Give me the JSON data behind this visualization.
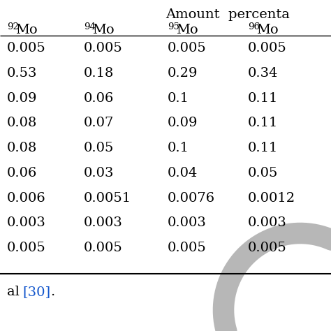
{
  "header_top": "Amount  percenta",
  "col_superscripts": [
    "92",
    "94",
    "95",
    "96"
  ],
  "col_bases": [
    "Mo",
    "Mo",
    "Mo",
    "Mo"
  ],
  "rows": [
    [
      "0.005",
      "0.005",
      "0.005",
      "0.005"
    ],
    [
      "0.53",
      "0.18",
      "0.29",
      "0.34"
    ],
    [
      "0.09",
      "0.06",
      "0.1",
      "0.11"
    ],
    [
      "0.08",
      "0.07",
      "0.09",
      "0.11"
    ],
    [
      "0.08",
      "0.05",
      "0.1",
      "0.11"
    ],
    [
      "0.06",
      "0.03",
      "0.04",
      "0.05"
    ],
    [
      "0.006",
      "0.0051",
      "0.0076",
      "0.0012"
    ],
    [
      "0.003",
      "0.003",
      "0.003",
      "0.003"
    ],
    [
      "0.005",
      "0.005",
      "0.005",
      "0.005"
    ]
  ],
  "footer_plain": "al ",
  "footer_blue": "[30]",
  "footer_dot": ".",
  "footer_color": "#1155cc",
  "bg_color": "#ffffff",
  "text_color": "#000000",
  "watermark_color": "#b0b0b0",
  "font_size": 14,
  "sup_font_size": 9.5
}
